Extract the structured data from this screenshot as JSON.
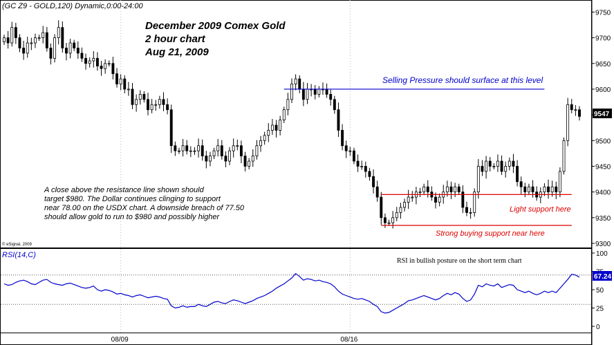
{
  "header": {
    "symbol_label": "(GC Z9 - GOLD,120) Dynamic,0:00-24:00",
    "copyright": "© eSignal, 2009"
  },
  "title_block": {
    "line1": "December 2009 Comex Gold",
    "line2": "2 hour chart",
    "line3": "Aug 21, 2009"
  },
  "commentary": [
    "A close above the resistance line shown should",
    "target $980. The Dollar continues clinging to support",
    "near 78.00 on the USDX chart. A downside breach of 77.50",
    "should allow gold to run to $980 and possibly higher"
  ],
  "colors": {
    "candle": "#000000",
    "resistance_line": "#0000cc",
    "support_line": "#dd0000",
    "rsi_line": "#0000cc",
    "last_price_bg": "#000000",
    "last_price_fg": "#ffffff"
  },
  "chart_data": [
    {
      "type": "candlestick",
      "ylim": [
        9300,
        9760
      ],
      "y_ticks": [
        "9750",
        "9700",
        "9650",
        "9600",
        "9550",
        "9500",
        "9450",
        "9400",
        "9350",
        "9300"
      ],
      "last_price": "9547",
      "closes": [
        9700,
        9690,
        9720,
        9700,
        9680,
        9670,
        9690,
        9690,
        9700,
        9700,
        9710,
        9680,
        9660,
        9700,
        9720,
        9680,
        9670,
        9690,
        9680,
        9670,
        9660,
        9650,
        9655,
        9660,
        9645,
        9640,
        9650,
        9650,
        9630,
        9610,
        9620,
        9600,
        9600,
        9570,
        9580,
        9590,
        9580,
        9560,
        9570,
        9570,
        9580,
        9570,
        9560,
        9490,
        9480,
        9480,
        9490,
        9480,
        9480,
        9480,
        9490,
        9470,
        9460,
        9470,
        9480,
        9490,
        9470,
        9460,
        9480,
        9490,
        9490,
        9470,
        9450,
        9460,
        9470,
        9490,
        9500,
        9510,
        9520,
        9530,
        9520,
        9540,
        9560,
        9580,
        9610,
        9620,
        9600,
        9580,
        9600,
        9600,
        9590,
        9600,
        9600,
        9590,
        9580,
        9560,
        9520,
        9490,
        9480,
        9480,
        9460,
        9450,
        9450,
        9440,
        9430,
        9410,
        9390,
        9350,
        9340,
        9340,
        9350,
        9360,
        9370,
        9380,
        9390,
        9390,
        9400,
        9400,
        9410,
        9400,
        9390,
        9380,
        9390,
        9400,
        9410,
        9400,
        9410,
        9400,
        9370,
        9360,
        9360,
        9400,
        9450,
        9440,
        9460,
        9450,
        9450,
        9460,
        9440,
        9450,
        9460,
        9450,
        9420,
        9410,
        9400,
        9410,
        9400,
        9390,
        9400,
        9410,
        9400,
        9410,
        9400,
        9440,
        9500,
        9570,
        9560,
        9560,
        9547
      ],
      "annotations": {
        "resistance": {
          "label": "Selling Pressure should surface at this level",
          "level": 9600
        },
        "light_support": {
          "label": "Light support here",
          "level": 9395
        },
        "strong_support": {
          "label": "Strong buying support near here",
          "level": 9335
        }
      },
      "x_tick_labels": [
        "08/09",
        "08/16"
      ]
    },
    {
      "type": "line",
      "title": "RSI(14,C)",
      "ylim": [
        0,
        100
      ],
      "y_ticks": [
        "100",
        "75",
        "50",
        "25",
        "0"
      ],
      "reference_levels": [
        70,
        30
      ],
      "last_value": "67.24",
      "annotation": "RSI in bullish posture on the short term chart",
      "values": [
        58,
        56,
        57,
        60,
        62,
        63,
        61,
        58,
        57,
        60,
        63,
        64,
        60,
        58,
        57,
        56,
        58,
        59,
        57,
        55,
        53,
        52,
        53,
        55,
        50,
        48,
        50,
        49,
        47,
        44,
        45,
        43,
        42,
        40,
        42,
        43,
        41,
        39,
        40,
        41,
        40,
        38,
        37,
        28,
        25,
        26,
        28,
        26,
        27,
        27,
        30,
        28,
        27,
        30,
        33,
        34,
        32,
        31,
        34,
        36,
        35,
        33,
        31,
        33,
        35,
        38,
        40,
        42,
        45,
        48,
        52,
        55,
        58,
        62,
        66,
        72,
        68,
        63,
        65,
        64,
        62,
        63,
        61,
        60,
        58,
        54,
        48,
        44,
        42,
        40,
        38,
        37,
        38,
        36,
        34,
        30,
        27,
        20,
        18,
        19,
        22,
        25,
        28,
        31,
        35,
        36,
        38,
        40,
        42,
        40,
        38,
        36,
        38,
        42,
        45,
        43,
        46,
        44,
        38,
        34,
        36,
        44,
        56,
        54,
        58,
        56,
        55,
        58,
        53,
        55,
        57,
        56,
        50,
        48,
        46,
        48,
        45,
        43,
        45,
        48,
        46,
        48,
        46,
        52,
        58,
        64,
        71,
        70,
        67
      ]
    }
  ]
}
